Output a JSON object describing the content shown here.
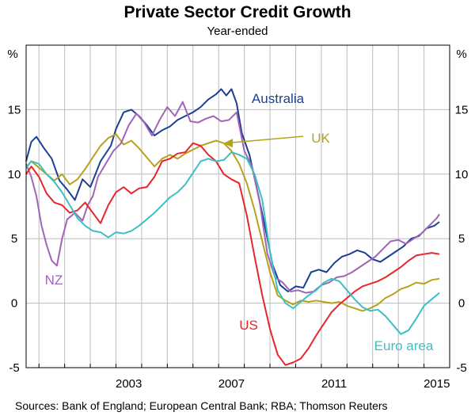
{
  "chart_data": {
    "type": "line",
    "title": "Private Sector Credit Growth",
    "subtitle": "Year-ended",
    "ylabel_left": "%",
    "ylabel_right": "%",
    "ylim": [
      -5,
      20
    ],
    "yticks": [
      -5,
      0,
      5,
      10,
      15
    ],
    "xlim": [
      1999.5,
      2016.0
    ],
    "xticks": [
      2003,
      2007,
      2011,
      2015
    ],
    "xtick_labels": [
      "2003",
      "2007",
      "2011",
      "2015"
    ],
    "source": "Sources:  Bank of England; European Central Bank; RBA; Thomson Reuters",
    "series": [
      {
        "name": "Australia",
        "color": "#1c3f94",
        "label": "Australia",
        "points": [
          [
            1999.5,
            11.0
          ],
          [
            1999.7,
            12.5
          ],
          [
            1999.9,
            12.9
          ],
          [
            2000.2,
            12.0
          ],
          [
            2000.5,
            11.2
          ],
          [
            2000.8,
            9.5
          ],
          [
            2001.1,
            8.8
          ],
          [
            2001.4,
            8.0
          ],
          [
            2001.7,
            9.6
          ],
          [
            2002.0,
            9.0
          ],
          [
            2002.4,
            11.0
          ],
          [
            2002.8,
            12.2
          ],
          [
            2003.0,
            13.5
          ],
          [
            2003.3,
            14.8
          ],
          [
            2003.6,
            15.0
          ],
          [
            2003.9,
            14.5
          ],
          [
            2004.2,
            13.8
          ],
          [
            2004.5,
            13.0
          ],
          [
            2004.8,
            13.4
          ],
          [
            2005.1,
            13.7
          ],
          [
            2005.4,
            14.2
          ],
          [
            2005.7,
            14.5
          ],
          [
            2006.0,
            14.8
          ],
          [
            2006.3,
            15.2
          ],
          [
            2006.6,
            15.8
          ],
          [
            2006.9,
            16.2
          ],
          [
            2007.1,
            16.6
          ],
          [
            2007.3,
            16.1
          ],
          [
            2007.5,
            16.6
          ],
          [
            2007.7,
            15.5
          ],
          [
            2007.9,
            13.2
          ],
          [
            2008.2,
            11.5
          ],
          [
            2008.5,
            8.8
          ],
          [
            2008.8,
            6.0
          ],
          [
            2009.1,
            3.0
          ],
          [
            2009.4,
            1.4
          ],
          [
            2009.7,
            0.9
          ],
          [
            2010.0,
            1.3
          ],
          [
            2010.3,
            1.2
          ],
          [
            2010.6,
            2.4
          ],
          [
            2010.9,
            2.6
          ],
          [
            2011.2,
            2.4
          ],
          [
            2011.5,
            3.1
          ],
          [
            2011.8,
            3.6
          ],
          [
            2012.1,
            3.8
          ],
          [
            2012.4,
            4.1
          ],
          [
            2012.7,
            3.9
          ],
          [
            2013.0,
            3.4
          ],
          [
            2013.3,
            3.2
          ],
          [
            2013.6,
            3.6
          ],
          [
            2013.9,
            4.0
          ],
          [
            2014.2,
            4.4
          ],
          [
            2014.5,
            5.0
          ],
          [
            2014.8,
            5.2
          ],
          [
            2015.1,
            5.8
          ],
          [
            2015.4,
            6.0
          ],
          [
            2015.6,
            6.3
          ]
        ]
      },
      {
        "name": "UK",
        "color": "#b8a21a",
        "label": "UK",
        "points": [
          [
            1999.5,
            10.5
          ],
          [
            1999.7,
            11.0
          ],
          [
            2000.0,
            10.5
          ],
          [
            2000.3,
            10.0
          ],
          [
            2000.6,
            9.5
          ],
          [
            2000.9,
            10.0
          ],
          [
            2001.2,
            9.2
          ],
          [
            2001.5,
            9.6
          ],
          [
            2001.8,
            10.4
          ],
          [
            2002.1,
            11.3
          ],
          [
            2002.4,
            12.2
          ],
          [
            2002.7,
            12.8
          ],
          [
            2003.0,
            13.1
          ],
          [
            2003.3,
            12.3
          ],
          [
            2003.6,
            12.6
          ],
          [
            2003.9,
            12.0
          ],
          [
            2004.2,
            11.3
          ],
          [
            2004.5,
            10.6
          ],
          [
            2004.8,
            11.2
          ],
          [
            2005.1,
            11.5
          ],
          [
            2005.4,
            11.2
          ],
          [
            2005.7,
            11.6
          ],
          [
            2006.0,
            11.9
          ],
          [
            2006.3,
            12.2
          ],
          [
            2006.6,
            12.4
          ],
          [
            2006.9,
            12.6
          ],
          [
            2007.2,
            12.4
          ],
          [
            2007.5,
            11.8
          ],
          [
            2007.8,
            10.8
          ],
          [
            2008.1,
            9.3
          ],
          [
            2008.4,
            7.2
          ],
          [
            2008.7,
            4.8
          ],
          [
            2009.0,
            2.4
          ],
          [
            2009.3,
            0.6
          ],
          [
            2009.6,
            0.2
          ],
          [
            2009.9,
            -0.1
          ],
          [
            2010.2,
            0.2
          ],
          [
            2010.5,
            0.1
          ],
          [
            2010.8,
            0.2
          ],
          [
            2011.1,
            0.1
          ],
          [
            2011.4,
            0.0
          ],
          [
            2011.7,
            0.1
          ],
          [
            2012.0,
            -0.2
          ],
          [
            2012.3,
            -0.4
          ],
          [
            2012.6,
            -0.6
          ],
          [
            2012.9,
            -0.4
          ],
          [
            2013.2,
            -0.1
          ],
          [
            2013.5,
            0.4
          ],
          [
            2013.8,
            0.7
          ],
          [
            2014.1,
            1.1
          ],
          [
            2014.4,
            1.3
          ],
          [
            2014.7,
            1.6
          ],
          [
            2015.0,
            1.5
          ],
          [
            2015.3,
            1.8
          ],
          [
            2015.6,
            1.9
          ]
        ]
      },
      {
        "name": "NZ",
        "color": "#a065b8",
        "label": "NZ",
        "points": [
          [
            1999.5,
            10.8
          ],
          [
            1999.7,
            9.8
          ],
          [
            1999.9,
            8.3
          ],
          [
            2000.1,
            6.0
          ],
          [
            2000.3,
            4.5
          ],
          [
            2000.5,
            3.3
          ],
          [
            2000.7,
            2.9
          ],
          [
            2000.9,
            5.0
          ],
          [
            2001.1,
            6.5
          ],
          [
            2001.4,
            7.0
          ],
          [
            2001.7,
            6.4
          ],
          [
            2001.9,
            7.6
          ],
          [
            2002.1,
            8.3
          ],
          [
            2002.3,
            9.8
          ],
          [
            2002.6,
            10.8
          ],
          [
            2002.9,
            11.8
          ],
          [
            2003.2,
            12.4
          ],
          [
            2003.5,
            13.8
          ],
          [
            2003.8,
            14.7
          ],
          [
            2004.1,
            14.0
          ],
          [
            2004.4,
            13.0
          ],
          [
            2004.7,
            14.2
          ],
          [
            2005.0,
            15.2
          ],
          [
            2005.3,
            14.5
          ],
          [
            2005.6,
            15.6
          ],
          [
            2005.9,
            14.1
          ],
          [
            2006.2,
            14.0
          ],
          [
            2006.5,
            14.3
          ],
          [
            2006.8,
            14.5
          ],
          [
            2007.1,
            14.1
          ],
          [
            2007.4,
            14.2
          ],
          [
            2007.7,
            14.8
          ],
          [
            2008.0,
            11.8
          ],
          [
            2008.3,
            10.6
          ],
          [
            2008.6,
            7.8
          ],
          [
            2008.9,
            3.8
          ],
          [
            2009.2,
            2.0
          ],
          [
            2009.5,
            1.6
          ],
          [
            2009.8,
            0.9
          ],
          [
            2010.1,
            1.0
          ],
          [
            2010.4,
            0.8
          ],
          [
            2010.7,
            0.9
          ],
          [
            2011.0,
            1.4
          ],
          [
            2011.3,
            1.6
          ],
          [
            2011.6,
            2.0
          ],
          [
            2011.9,
            2.1
          ],
          [
            2012.2,
            2.4
          ],
          [
            2012.5,
            2.8
          ],
          [
            2012.8,
            3.2
          ],
          [
            2013.1,
            3.6
          ],
          [
            2013.4,
            4.2
          ],
          [
            2013.7,
            4.8
          ],
          [
            2014.0,
            4.9
          ],
          [
            2014.3,
            4.6
          ],
          [
            2014.6,
            5.0
          ],
          [
            2014.9,
            5.4
          ],
          [
            2015.2,
            6.0
          ],
          [
            2015.5,
            6.6
          ],
          [
            2015.6,
            6.9
          ]
        ]
      },
      {
        "name": "US",
        "color": "#e8262a",
        "label": "US",
        "points": [
          [
            1999.5,
            10.0
          ],
          [
            1999.7,
            10.6
          ],
          [
            2000.0,
            9.8
          ],
          [
            2000.3,
            8.5
          ],
          [
            2000.6,
            7.8
          ],
          [
            2000.9,
            7.6
          ],
          [
            2001.2,
            7.0
          ],
          [
            2001.5,
            7.2
          ],
          [
            2001.8,
            7.8
          ],
          [
            2002.1,
            7.0
          ],
          [
            2002.4,
            6.2
          ],
          [
            2002.7,
            7.6
          ],
          [
            2003.0,
            8.6
          ],
          [
            2003.3,
            9.0
          ],
          [
            2003.6,
            8.5
          ],
          [
            2003.9,
            8.9
          ],
          [
            2004.2,
            9.0
          ],
          [
            2004.5,
            9.8
          ],
          [
            2004.8,
            11.0
          ],
          [
            2005.1,
            11.2
          ],
          [
            2005.4,
            11.6
          ],
          [
            2005.7,
            11.7
          ],
          [
            2006.0,
            12.4
          ],
          [
            2006.3,
            12.2
          ],
          [
            2006.6,
            11.5
          ],
          [
            2006.9,
            11.0
          ],
          [
            2007.2,
            10.0
          ],
          [
            2007.5,
            9.6
          ],
          [
            2007.8,
            9.3
          ],
          [
            2008.1,
            6.8
          ],
          [
            2008.4,
            3.6
          ],
          [
            2008.7,
            0.6
          ],
          [
            2009.0,
            -2.0
          ],
          [
            2009.3,
            -4.0
          ],
          [
            2009.6,
            -4.8
          ],
          [
            2009.9,
            -4.6
          ],
          [
            2010.2,
            -4.3
          ],
          [
            2010.5,
            -3.5
          ],
          [
            2010.8,
            -2.5
          ],
          [
            2011.1,
            -1.6
          ],
          [
            2011.4,
            -0.7
          ],
          [
            2011.7,
            -0.1
          ],
          [
            2012.0,
            0.4
          ],
          [
            2012.3,
            0.9
          ],
          [
            2012.6,
            1.3
          ],
          [
            2012.9,
            1.5
          ],
          [
            2013.2,
            1.7
          ],
          [
            2013.5,
            2.0
          ],
          [
            2013.8,
            2.4
          ],
          [
            2014.1,
            2.8
          ],
          [
            2014.4,
            3.3
          ],
          [
            2014.7,
            3.7
          ],
          [
            2015.0,
            3.8
          ],
          [
            2015.3,
            3.9
          ],
          [
            2015.6,
            3.8
          ]
        ]
      },
      {
        "name": "Euro area",
        "color": "#3cbfc6",
        "label": "Euro area",
        "points": [
          [
            1999.5,
            10.5
          ],
          [
            1999.7,
            11.0
          ],
          [
            2000.0,
            10.8
          ],
          [
            2000.3,
            10.0
          ],
          [
            2000.6,
            9.4
          ],
          [
            2000.9,
            8.6
          ],
          [
            2001.2,
            7.6
          ],
          [
            2001.5,
            6.6
          ],
          [
            2001.8,
            6.0
          ],
          [
            2002.1,
            5.6
          ],
          [
            2002.4,
            5.5
          ],
          [
            2002.7,
            5.1
          ],
          [
            2003.0,
            5.5
          ],
          [
            2003.3,
            5.4
          ],
          [
            2003.6,
            5.6
          ],
          [
            2003.9,
            6.0
          ],
          [
            2004.2,
            6.5
          ],
          [
            2004.5,
            7.0
          ],
          [
            2004.8,
            7.6
          ],
          [
            2005.1,
            8.2
          ],
          [
            2005.4,
            8.6
          ],
          [
            2005.7,
            9.2
          ],
          [
            2006.0,
            10.1
          ],
          [
            2006.3,
            11.0
          ],
          [
            2006.6,
            11.2
          ],
          [
            2006.9,
            11.0
          ],
          [
            2007.2,
            11.1
          ],
          [
            2007.5,
            11.7
          ],
          [
            2007.8,
            11.5
          ],
          [
            2008.1,
            11.2
          ],
          [
            2008.4,
            10.0
          ],
          [
            2008.7,
            8.0
          ],
          [
            2009.0,
            4.0
          ],
          [
            2009.3,
            1.0
          ],
          [
            2009.6,
            0.0
          ],
          [
            2009.9,
            -0.4
          ],
          [
            2010.2,
            0.1
          ],
          [
            2010.5,
            0.6
          ],
          [
            2010.8,
            1.0
          ],
          [
            2011.1,
            1.6
          ],
          [
            2011.4,
            1.9
          ],
          [
            2011.7,
            1.7
          ],
          [
            2012.0,
            1.0
          ],
          [
            2012.3,
            0.3
          ],
          [
            2012.6,
            -0.3
          ],
          [
            2012.9,
            -0.6
          ],
          [
            2013.2,
            -0.5
          ],
          [
            2013.5,
            -1.0
          ],
          [
            2013.8,
            -1.7
          ],
          [
            2014.1,
            -2.4
          ],
          [
            2014.4,
            -2.1
          ],
          [
            2014.7,
            -1.2
          ],
          [
            2015.0,
            -0.2
          ],
          [
            2015.3,
            0.3
          ],
          [
            2015.6,
            0.8
          ]
        ]
      }
    ]
  }
}
